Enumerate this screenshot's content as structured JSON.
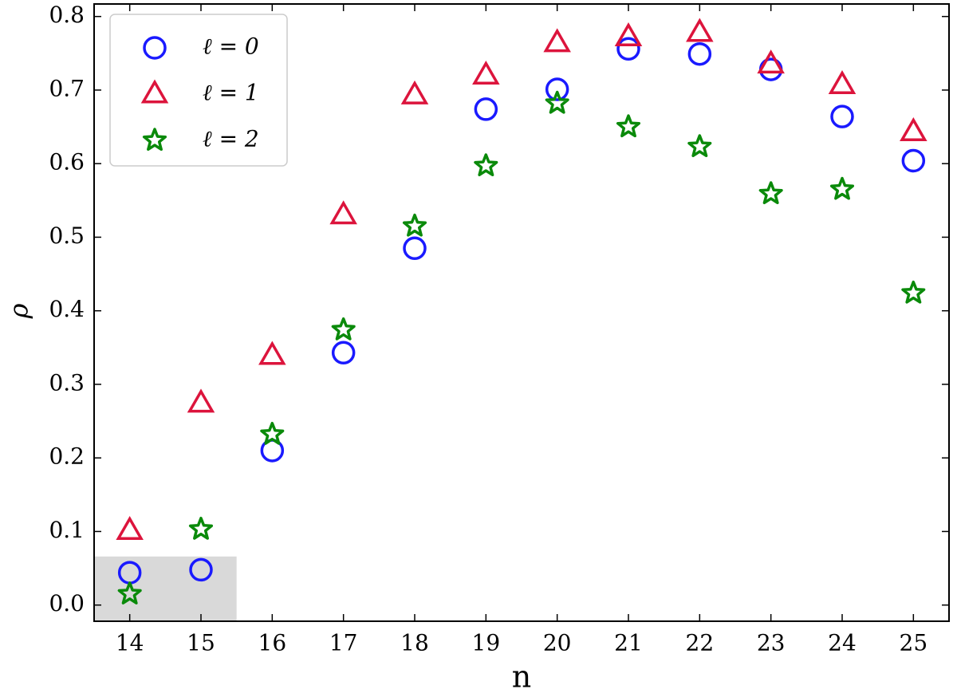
{
  "chart_data": {
    "type": "scatter",
    "x_label": "n",
    "y_label": "ρ",
    "x": [
      14,
      15,
      16,
      17,
      18,
      19,
      20,
      21,
      22,
      23,
      24,
      25
    ],
    "series": [
      {
        "name": "ℓ = 0",
        "color": "#1a1aff",
        "marker": "circle",
        "values": [
          0.044,
          0.048,
          0.21,
          0.343,
          0.485,
          0.674,
          0.701,
          0.756,
          0.749,
          0.728,
          0.664,
          0.604
        ]
      },
      {
        "name": "ℓ = 1",
        "color": "#dc143c",
        "marker": "triangle",
        "values": [
          0.101,
          0.274,
          0.339,
          0.53,
          0.693,
          0.72,
          0.764,
          0.772,
          0.778,
          0.735,
          0.707,
          0.643
        ]
      },
      {
        "name": "ℓ = 2",
        "color": "#0a8a0a",
        "marker": "star",
        "values": [
          0.015,
          0.103,
          0.232,
          0.374,
          0.515,
          0.597,
          0.682,
          0.65,
          0.623,
          0.559,
          0.565,
          0.424
        ]
      }
    ],
    "shaded_region": {
      "xlim": [
        13.5,
        15.5
      ],
      "ylim": [
        -0.022,
        0.066
      ],
      "color": "#d9d9d9"
    },
    "xlim": [
      13.5,
      25.5
    ],
    "ylim": [
      -0.022,
      0.817
    ],
    "xticks": [
      14,
      15,
      16,
      17,
      18,
      19,
      20,
      21,
      22,
      23,
      24,
      25
    ],
    "yticks": [
      {
        "value": 0,
        "label": "0.0"
      },
      0.1,
      0.2,
      0.3,
      0.4,
      0.5,
      0.6,
      0.7,
      0.8
    ],
    "legend": "upper-left"
  }
}
